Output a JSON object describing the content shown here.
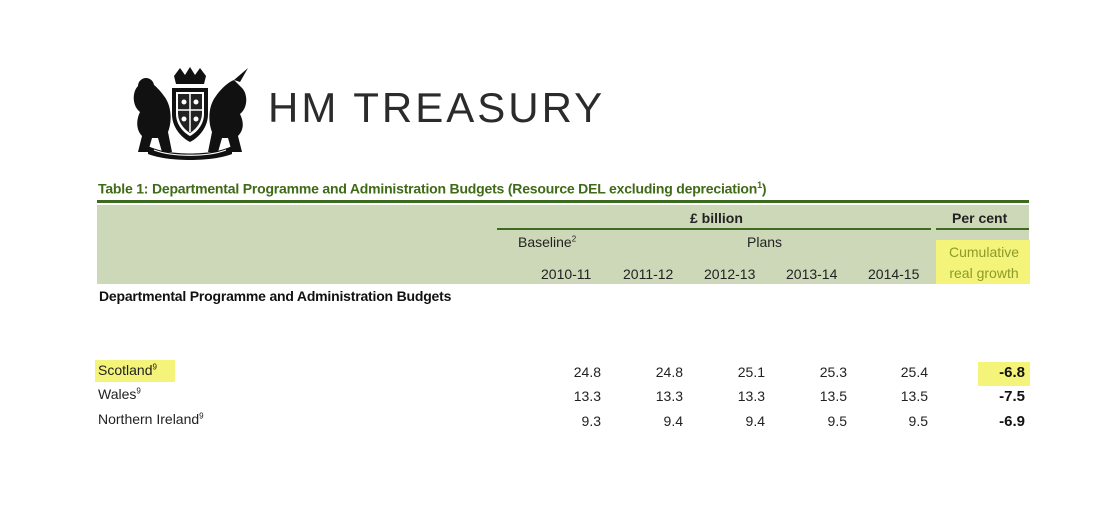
{
  "header": {
    "logo_icon": "royal-coat-of-arms-icon",
    "logo_text": "HM TREASURY"
  },
  "table": {
    "title": "Table 1: Departmental Programme and Administration Budgets (Resource DEL excluding depreciation",
    "title_footnote": "1",
    "title_close": ")",
    "unit_label": "£ billion",
    "percent_label": "Per cent",
    "baseline_label": "Baseline",
    "baseline_footnote": "2",
    "plans_label": "Plans",
    "growth_label_line1": "Cumulative",
    "growth_label_line2": "real growth",
    "years": [
      "2010-11",
      "2011-12",
      "2012-13",
      "2013-14",
      "2014-15"
    ],
    "section_label": "Departmental Programme and Administration Budgets",
    "rows": [
      {
        "name": "Scotland",
        "footnote": "9",
        "values": [
          "24.8",
          "24.8",
          "25.1",
          "25.3",
          "25.4"
        ],
        "growth": "-6.8",
        "highlighted": true
      },
      {
        "name": "Wales",
        "footnote": "9",
        "values": [
          "13.3",
          "13.3",
          "13.3",
          "13.5",
          "13.5"
        ],
        "growth": "-7.5",
        "highlighted": false
      },
      {
        "name": "Northern Ireland",
        "footnote": "9",
        "values": [
          "9.3",
          "9.4",
          "9.4",
          "9.5",
          "9.5"
        ],
        "growth": "-6.9",
        "highlighted": false
      }
    ]
  },
  "colors": {
    "title_green": "#3f6a16",
    "band_green": "#ccd8b7",
    "rule_green": "#3c6a1f",
    "highlight_yellow": "#f4f47a"
  }
}
